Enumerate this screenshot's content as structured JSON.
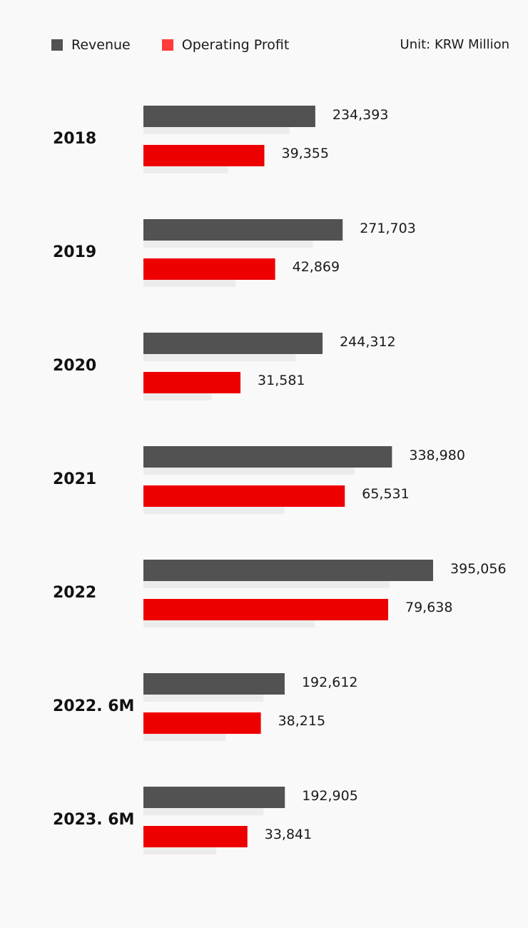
{
  "legend": {
    "revenue": "Revenue",
    "operating_profit": "Operating Profit",
    "unit": "Unit: KRW Million"
  },
  "colors": {
    "revenue": "#525252",
    "operating_profit": "#ee0000",
    "legend_operating_profit": "#ff3b3b",
    "shadow": "#ececec"
  },
  "chart_data": {
    "type": "bar",
    "orientation": "horizontal",
    "title": "",
    "categories": [
      "2018",
      "2019",
      "2020",
      "2021",
      "2022",
      "2022. 6M",
      "2023. 6M"
    ],
    "series": [
      {
        "name": "Revenue",
        "values": [
          234393,
          271703,
          244312,
          338980,
          395056,
          192612,
          192905
        ],
        "labels": [
          "234,393",
          "271,703",
          "244,312",
          "338,980",
          "395,056",
          "192,612",
          "192,905"
        ]
      },
      {
        "name": "Operating Profit",
        "values": [
          39355,
          42869,
          31581,
          65531,
          79638,
          38215,
          33841
        ],
        "labels": [
          "39,355",
          "42,869",
          "31,581",
          "65,531",
          "79,638",
          "38,215",
          "33,841"
        ]
      }
    ],
    "unit": "KRW Million",
    "legend_position": "top-left",
    "grid": false
  }
}
